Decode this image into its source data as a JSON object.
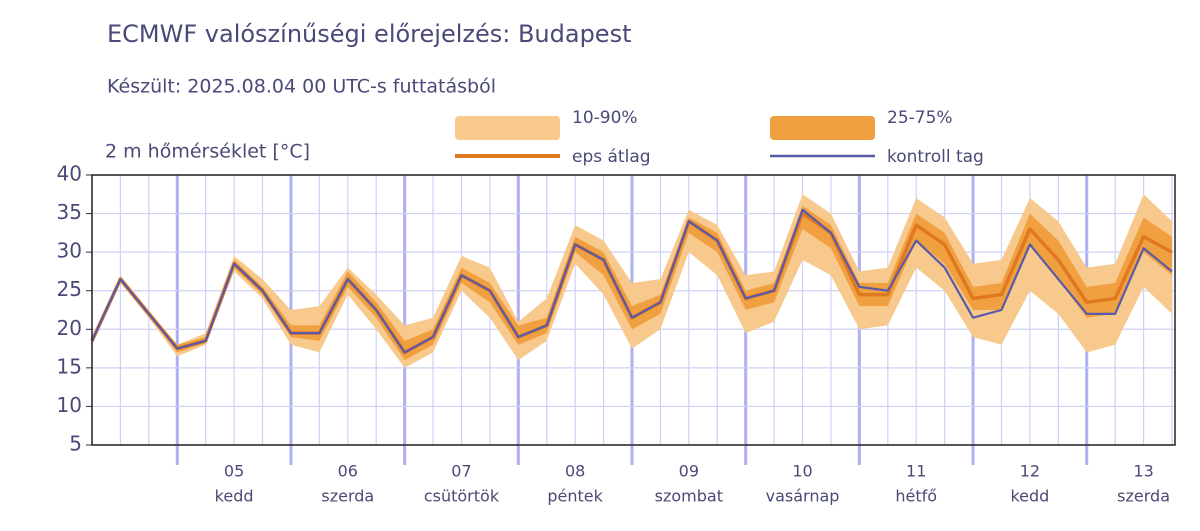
{
  "chart_data": {
    "type": "line",
    "title": "ECMWF valószínűségi előrejelzés: Budapest",
    "subtitle": "Készült: 2025.08.04 00 UTC-s futtatásból",
    "ylabel": "2 m hőmérséklet [°C]",
    "categories": [
      null,
      null,
      null,
      null,
      null,
      "05",
      null,
      null,
      null,
      "06",
      null,
      null,
      null,
      "07",
      null,
      null,
      null,
      "08",
      null,
      null,
      null,
      "09",
      null,
      null,
      null,
      "10",
      null,
      null,
      null,
      "11",
      null,
      null,
      null,
      "12",
      null,
      null,
      null,
      "13",
      null
    ],
    "category_sublabels": [
      null,
      null,
      null,
      null,
      null,
      "kedd",
      null,
      null,
      null,
      "szerda",
      null,
      null,
      null,
      "csütörtök",
      null,
      null,
      null,
      "péntek",
      null,
      null,
      null,
      "szombat",
      null,
      null,
      null,
      "vasárnap",
      null,
      null,
      null,
      "hétfő",
      null,
      null,
      null,
      "kedd",
      null,
      null,
      null,
      "szerda",
      null
    ],
    "ylim": [
      5,
      40
    ],
    "yticks": [
      5,
      10,
      15,
      20,
      25,
      30,
      35,
      40
    ],
    "grid": true,
    "bands": [
      {
        "name": "10-90%",
        "color": "#f8c98c",
        "lower": [
          18,
          26,
          21.5,
          16.5,
          18,
          27.5,
          24,
          18,
          17,
          24.5,
          20,
          15,
          17,
          25,
          21.5,
          16,
          18.5,
          28.5,
          24.5,
          17.5,
          20,
          30,
          27,
          19.5,
          21,
          29,
          27,
          20,
          20.5,
          28,
          25,
          19,
          18,
          25,
          22,
          17,
          18,
          25.5,
          22
        ],
        "upper": [
          19,
          27,
          22.5,
          18,
          19.5,
          29.5,
          26.5,
          22.5,
          23,
          28,
          24.5,
          20.5,
          21.5,
          29.5,
          28,
          21,
          24,
          33.5,
          31.5,
          26,
          26.5,
          35.5,
          33.5,
          27,
          27.5,
          37.5,
          35,
          27.5,
          28,
          37,
          34.5,
          28.5,
          29,
          37,
          34,
          28,
          28.5,
          37.5,
          34
        ]
      },
      {
        "name": "25-75%",
        "color": "#f0a040",
        "lower": [
          18.3,
          26.3,
          21.8,
          17,
          18.2,
          28,
          24.5,
          19,
          18.5,
          25.5,
          21.5,
          16,
          18,
          26,
          23.5,
          18,
          19.5,
          30,
          27,
          20,
          22,
          32.5,
          30,
          22.5,
          23.5,
          33,
          30.5,
          23,
          23,
          31.5,
          28.5,
          22.5,
          22.5,
          31,
          26.5,
          21.5,
          22,
          30,
          27
        ],
        "upper": [
          18.8,
          26.8,
          22.3,
          18,
          19,
          29,
          25.5,
          20.5,
          20.5,
          27.5,
          23.5,
          18.5,
          20,
          28,
          26,
          20.5,
          21.5,
          32,
          30,
          23,
          24.5,
          34.5,
          32.5,
          25,
          26,
          36,
          33.5,
          26,
          26,
          35,
          32.5,
          25.5,
          26,
          35,
          31.5,
          25.5,
          26,
          34.5,
          32
        ]
      }
    ],
    "series": [
      {
        "name": "eps átlag",
        "color": "#e07820",
        "values": [
          18.5,
          26.5,
          22,
          17.5,
          18.5,
          28.5,
          25,
          19.5,
          19.5,
          26.5,
          22.5,
          17,
          19,
          27,
          25,
          19,
          20.5,
          31,
          29,
          21.5,
          23.5,
          34,
          31.5,
          24,
          25,
          35,
          32.5,
          24.5,
          24.5,
          33.5,
          31,
          24,
          24.5,
          33,
          29,
          23.5,
          24,
          32,
          30
        ]
      },
      {
        "name": "kontroll tag",
        "color": "#5b5aa8",
        "values": [
          18.5,
          26.5,
          22,
          17.5,
          18.5,
          28.5,
          25,
          19.5,
          19.5,
          26.5,
          22.5,
          17,
          19,
          27,
          25,
          19,
          20.5,
          31,
          29,
          21.5,
          23.5,
          34,
          31.5,
          24,
          25,
          35.5,
          32.5,
          25.5,
          25,
          31.5,
          28,
          21.5,
          22.5,
          31,
          26.5,
          22,
          22,
          30.5,
          27.5
        ]
      }
    ]
  }
}
